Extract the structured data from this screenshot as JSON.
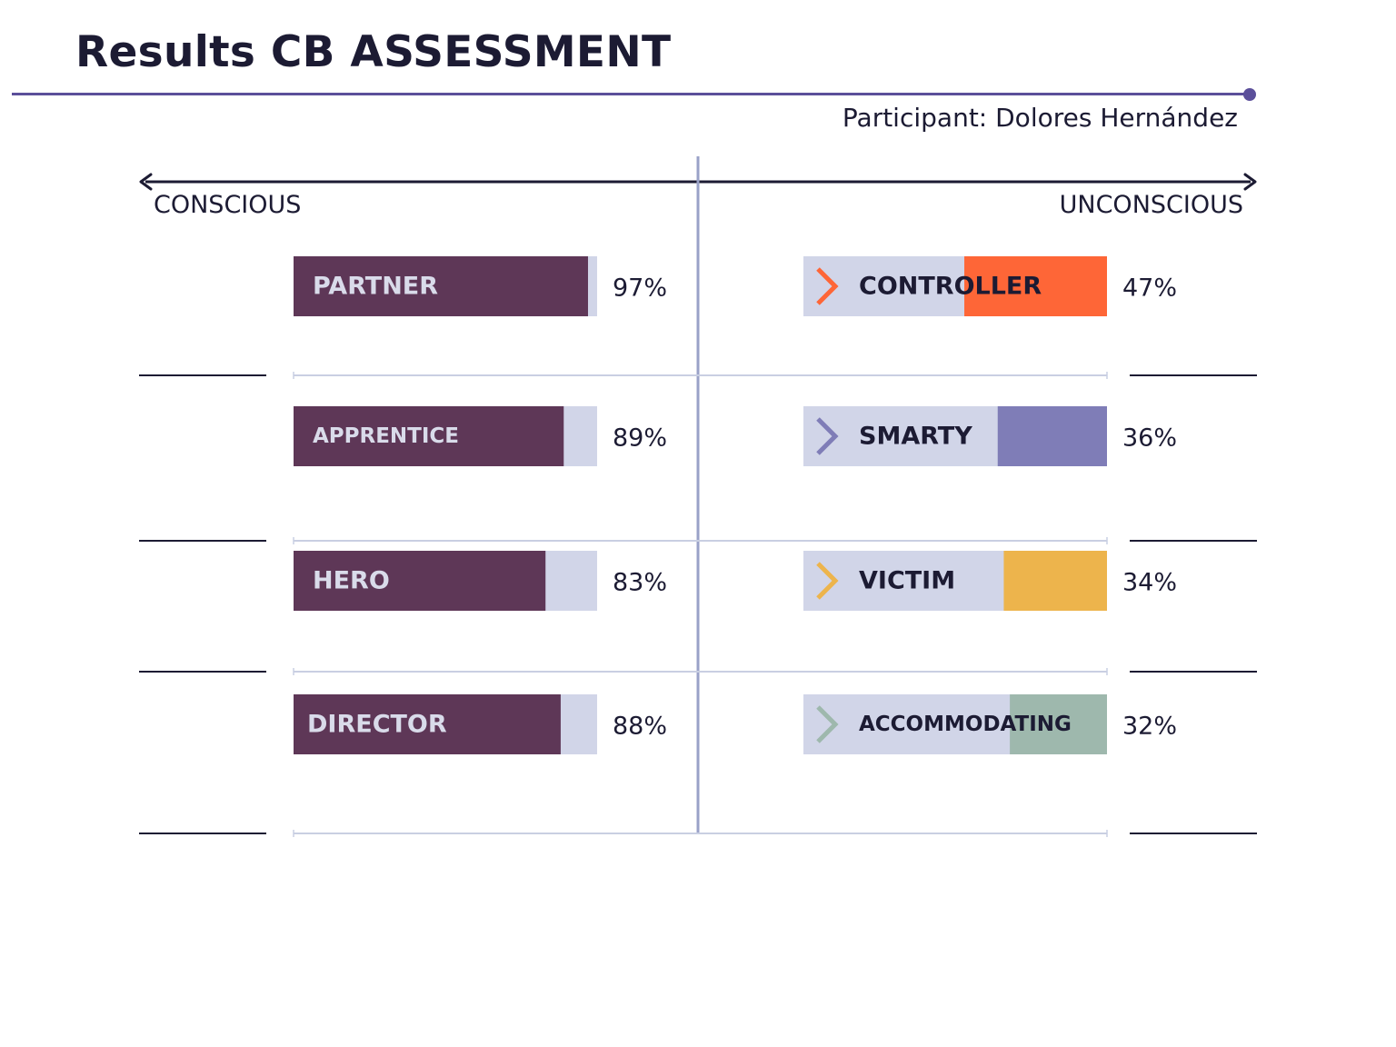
{
  "header": {
    "title": "Results CB ASSESSMENT",
    "participant": "Participant: Dolores Hernández"
  },
  "axis": {
    "left_label": "CONSCIOUS",
    "right_label": "UNCONSCIOUS"
  },
  "chart_data": {
    "type": "bar",
    "orientation": "horizontal",
    "ylim": [
      0,
      100
    ],
    "groups": [
      {
        "side": "conscious",
        "fill_direction": "left-to-right",
        "track_color": "#d1d5e8",
        "items": [
          {
            "label": "PARTNER",
            "value": 97,
            "display": "97%",
            "color": "#5e3757"
          },
          {
            "label": "APPRENTICE",
            "value": 89,
            "display": "89%",
            "color": "#5e3757"
          },
          {
            "label": "HERO",
            "value": 83,
            "display": "83%",
            "color": "#5e3757"
          },
          {
            "label": "DIRECTOR",
            "value": 88,
            "display": "88%",
            "color": "#5e3757"
          }
        ]
      },
      {
        "side": "unconscious",
        "fill_direction": "right-to-left",
        "track_color": "#d1d5e8",
        "items": [
          {
            "label": "CONTROLLER",
            "value": 47,
            "display": "47%",
            "color": "#fe6637",
            "icon": "chevron-right-icon"
          },
          {
            "label": "SMARTY",
            "value": 36,
            "display": "36%",
            "color": "#7f7db7",
            "icon": "chevron-right-icon"
          },
          {
            "label": "VICTIM",
            "value": 34,
            "display": "34%",
            "color": "#edb44c",
            "icon": "chevron-right-icon"
          },
          {
            "label": "ACCOMMODATING",
            "value": 32,
            "display": "32%",
            "color": "#9eb8ad",
            "icon": "chevron-right-icon"
          }
        ]
      }
    ],
    "colors": {
      "text_dark": "#1c1b33",
      "text_light": "#d9dbea",
      "accent": "#5b4f9a",
      "divider": "#9aa2c8",
      "grid": "#c9cfe2"
    }
  }
}
